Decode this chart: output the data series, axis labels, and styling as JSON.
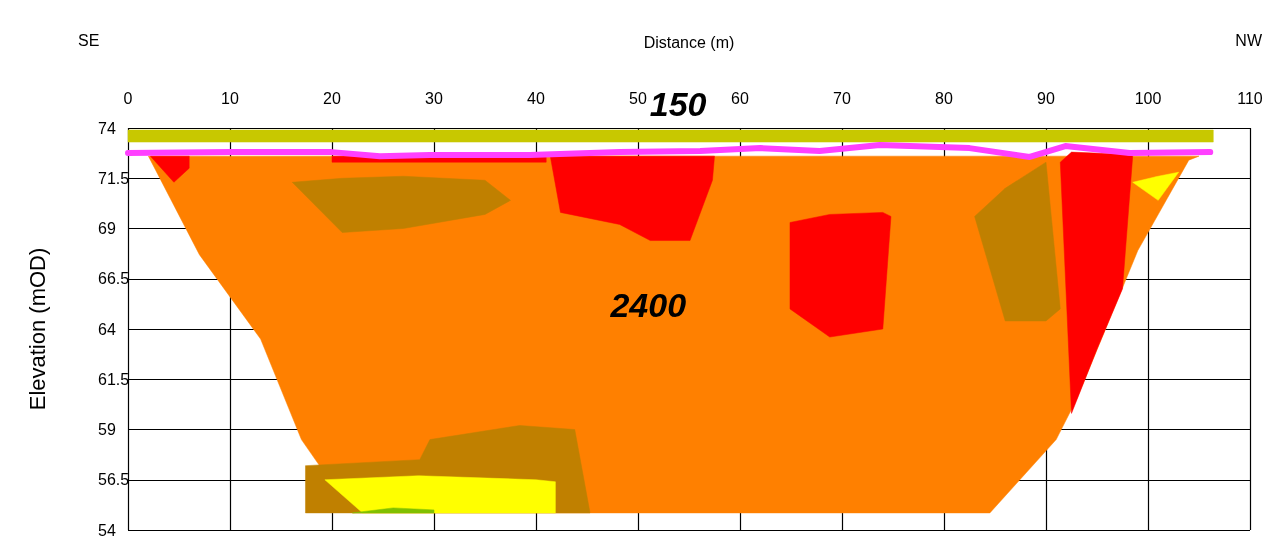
{
  "chart_data": {
    "type": "area",
    "xlabel": "Distance (m)",
    "ylabel": "Elevation (mOD)",
    "xlim": [
      0,
      110
    ],
    "xticks": [
      0,
      10,
      20,
      30,
      40,
      50,
      60,
      70,
      80,
      90,
      100,
      110
    ],
    "ylim": [
      54,
      74
    ],
    "yticks": [
      54,
      56.5,
      59,
      61.5,
      64,
      66.5,
      69,
      71.5,
      74
    ],
    "grid": true,
    "annotations": [
      "SE",
      "NW",
      "150",
      "2400"
    ],
    "series": [
      {
        "color": "#ff8000",
        "x": [
          2,
          105,
          104,
          99,
          93,
          91,
          84.5,
          22,
          17,
          13,
          7
        ],
        "values": [
          72.6,
          72.6,
          72.4,
          67.9,
          60.5,
          58.5,
          54.85,
          54.85,
          58.5,
          63.5,
          67.7
        ]
      },
      {
        "color": "#c08000",
        "x": [
          16.1,
          21,
          27,
          35,
          37.5,
          35,
          27,
          21
        ],
        "values": [
          71.3,
          71.5,
          71.6,
          71.4,
          70.4,
          69.7,
          69,
          68.8
        ]
      },
      {
        "color": "#c08000",
        "x": [
          83,
          86,
          90,
          91.4,
          90,
          86
        ],
        "values": [
          69.6,
          71,
          72.3,
          65,
          64.4,
          64.4
        ]
      },
      {
        "color": "#c08000",
        "x": [
          17.4,
          28.6,
          29.6,
          38.4,
          43.8,
          45.3,
          17.4
        ],
        "values": [
          57.2,
          57.5,
          58.5,
          59.2,
          59,
          54.85,
          54.85
        ]
      },
      {
        "color": "#ffff00",
        "x": [
          19.3,
          28.5,
          40,
          41.9,
          41.9,
          23
        ],
        "values": [
          56.5,
          56.7,
          56.5,
          56.4,
          54.85,
          54.85
        ]
      },
      {
        "color": "#80c000",
        "x": [
          22,
          26,
          30,
          30
        ],
        "values": [
          54.85,
          55.1,
          55,
          54.85
        ]
      },
      {
        "color": "#ffff00",
        "x": [
          98.5,
          101,
          103,
          101
        ],
        "values": [
          71.3,
          71.6,
          71.8,
          70.4
        ]
      },
      {
        "color": "#ff0000",
        "x": [
          2.2,
          6,
          6,
          4.5
        ],
        "values": [
          72.6,
          72.6,
          72,
          71.3
        ]
      },
      {
        "color": "#ff0000",
        "x": [
          20,
          41,
          41,
          20
        ],
        "values": [
          72.6,
          72.6,
          72.3,
          72.3
        ]
      },
      {
        "color": "#ff0000",
        "x": [
          41.4,
          57.5,
          57.3,
          55.1,
          51.2,
          48.2,
          42.4
        ],
        "values": [
          72.6,
          72.6,
          71.4,
          68.4,
          68.4,
          69.2,
          69.8
        ]
      },
      {
        "color": "#ff0000",
        "x": [
          64.9,
          68.8,
          74,
          74.8,
          74,
          68.8,
          64.9
        ],
        "values": [
          69.3,
          69.7,
          69.8,
          69.6,
          64,
          63.6,
          65
        ]
      },
      {
        "color": "#ff0000",
        "x": [
          91.4,
          92.5,
          97.5,
          98.5,
          97.5,
          95,
          92.5
        ],
        "values": [
          72.3,
          72.8,
          72.7,
          72.6,
          66,
          63,
          59.8
        ]
      },
      {
        "color": "#c8c800",
        "x": [
          0,
          106.4,
          106.4,
          0
        ],
        "values": [
          73.9,
          73.9,
          73.3,
          73.3
        ]
      },
      {
        "type": "line",
        "color": "#ff40ff",
        "x": [
          0,
          10,
          20,
          24.7,
          29.6,
          39.4,
          48.2,
          56.1,
          62,
          67.8,
          73.7,
          82.5,
          88.4,
          91.9,
          98.2,
          106.1
        ],
        "values": [
          72.76,
          72.8,
          72.8,
          72.6,
          72.66,
          72.66,
          72.8,
          72.86,
          73,
          72.86,
          73.15,
          73,
          72.56,
          73.1,
          72.76,
          72.8
        ]
      }
    ]
  }
}
